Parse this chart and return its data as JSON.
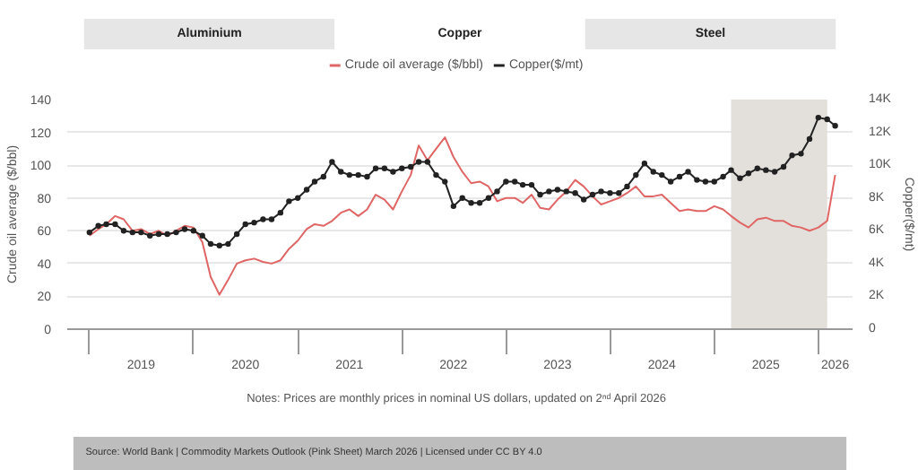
{
  "chart_data": {
    "type": "line",
    "annotations": [
      "Aluminium",
      "Copper",
      "Steel",
      "Notes:   Prices are monthly prices in nominal US dollars, updated on 2ⁿᵈ April 2026",
      "Source: World Bank | Commodity Markets Outlook (Pink Sheet) March 2026 | Licensed under CC BY 4.0"
    ],
    "ylabel": "Crude oil average ($/bbl)",
    "y2label": "Copper($/mt)",
    "x": [
      "2019-01",
      "2019-02",
      "2019-03",
      "2019-04",
      "2019-05",
      "2019-06",
      "2019-07",
      "2019-08",
      "2019-09",
      "2019-10",
      "2019-11",
      "2019-12",
      "2020-01",
      "2020-02",
      "2020-03",
      "2020-04",
      "2020-05",
      "2020-06",
      "2020-07",
      "2020-08",
      "2020-09",
      "2020-10",
      "2020-11",
      "2020-12",
      "2021-01",
      "2021-02",
      "2021-03",
      "2021-04",
      "2021-05",
      "2021-06",
      "2021-07",
      "2021-08",
      "2021-09",
      "2021-10",
      "2021-11",
      "2021-12",
      "2022-01",
      "2022-02",
      "2022-03",
      "2022-04",
      "2022-05",
      "2022-06",
      "2022-07",
      "2022-08",
      "2022-09",
      "2022-10",
      "2022-11",
      "2022-12",
      "2023-01",
      "2023-02",
      "2023-03",
      "2023-04",
      "2023-05",
      "2023-06",
      "2023-07",
      "2023-08",
      "2023-09",
      "2023-10",
      "2023-11",
      "2023-12",
      "2024-01",
      "2024-02",
      "2024-03",
      "2024-04",
      "2024-05",
      "2024-06",
      "2024-07",
      "2024-08",
      "2024-09",
      "2024-10",
      "2024-11",
      "2024-12",
      "2025-01",
      "2025-02",
      "2025-03",
      "2025-04",
      "2025-05",
      "2025-06",
      "2025-07",
      "2025-08",
      "2025-09",
      "2025-10",
      "2025-11",
      "2025-12",
      "2026-01",
      "2026-02",
      "2026-03"
    ],
    "series": [
      {
        "name": "Crude oil average ($/bbl)",
        "color": "#e06666",
        "marker": "none",
        "values": [
          57,
          61,
          64,
          69,
          67,
          60,
          61,
          58,
          60,
          57,
          60,
          63,
          62,
          53,
          32,
          21,
          30,
          40,
          42,
          43,
          41,
          40,
          42,
          49,
          54,
          61,
          64,
          63,
          66,
          71,
          73,
          69,
          73,
          82,
          79,
          73,
          84,
          94,
          112,
          103,
          110,
          117,
          105,
          96,
          89,
          90,
          87,
          78,
          80,
          80,
          77,
          82,
          74,
          73,
          79,
          84,
          91,
          87,
          81,
          76,
          78,
          80,
          83,
          87,
          81,
          81,
          82,
          77,
          72,
          73,
          72,
          72,
          75,
          73,
          69,
          65,
          62,
          67,
          68,
          66,
          66,
          63,
          62,
          60,
          62,
          66,
          94
        ]
      },
      {
        "name": "Copper($/mt)",
        "color": "#222222",
        "marker": "circle",
        "axis": "y2",
        "values": [
          5900,
          6300,
          6400,
          6400,
          6000,
          5900,
          5900,
          5700,
          5800,
          5800,
          5900,
          6100,
          6000,
          5700,
          5200,
          5100,
          5200,
          5800,
          6400,
          6500,
          6700,
          6700,
          7100,
          7800,
          8000,
          8500,
          9000,
          9300,
          10200,
          9600,
          9400,
          9400,
          9300,
          9800,
          9800,
          9600,
          9800,
          9900,
          10200,
          10200,
          9400,
          9000,
          7500,
          8000,
          7700,
          7700,
          8000,
          8400,
          9000,
          9000,
          8800,
          8800,
          8200,
          8400,
          8500,
          8400,
          8300,
          7900,
          8200,
          8400,
          8300,
          8300,
          8700,
          9400,
          10100,
          9600,
          9400,
          9000,
          9300,
          9600,
          9100,
          9000,
          9000,
          9300,
          9700,
          9200,
          9500,
          9800,
          9700,
          9600,
          9900,
          10600,
          10700,
          11600,
          12900,
          12800,
          12400
        ]
      }
    ],
    "xlim": [
      "2018-10-15",
      "2026-05-01"
    ],
    "xticks": [
      {
        "value": "2019-01-01",
        "label": null
      },
      {
        "value": "2019-07-01",
        "label": "2019"
      },
      {
        "value": "2020-01-01",
        "label": null
      },
      {
        "value": "2020-07-01",
        "label": "2020"
      },
      {
        "value": "2021-01-01",
        "label": null
      },
      {
        "value": "2021-07-01",
        "label": "2021"
      },
      {
        "value": "2022-01-01",
        "label": null
      },
      {
        "value": "2022-07-01",
        "label": "2022"
      },
      {
        "value": "2023-01-01",
        "label": null
      },
      {
        "value": "2023-07-01",
        "label": "2023"
      },
      {
        "value": "2024-01-01",
        "label": null
      },
      {
        "value": "2024-07-01",
        "label": "2024"
      },
      {
        "value": "2025-01-01",
        "label": null
      },
      {
        "value": "2025-07-01",
        "label": "2025"
      },
      {
        "value": "2026-01-01",
        "label": null
      },
      {
        "value": "2026-03-01",
        "label": "2026"
      }
    ],
    "ylim": [
      0,
      140
    ],
    "yticks": [
      0,
      20,
      40,
      60,
      80,
      100,
      120,
      140
    ],
    "y2lim": [
      0,
      14000
    ],
    "y2ticks": [
      0,
      {
        "value": 2000,
        "label": "2K"
      },
      {
        "value": 4000,
        "label": "4K"
      },
      {
        "value": 6000,
        "label": "6K"
      },
      {
        "value": 8000,
        "label": "8K"
      },
      {
        "value": 10000,
        "label": "10K"
      },
      {
        "value": 12000,
        "label": "12K"
      },
      {
        "value": 14000,
        "label": "14K"
      }
    ],
    "bands": [
      {
        "axis": "x",
        "from": "2025-03-01",
        "to": "2026-02-01",
        "color": "#e3dfdb"
      }
    ],
    "grid": "y",
    "legend": "top"
  }
}
